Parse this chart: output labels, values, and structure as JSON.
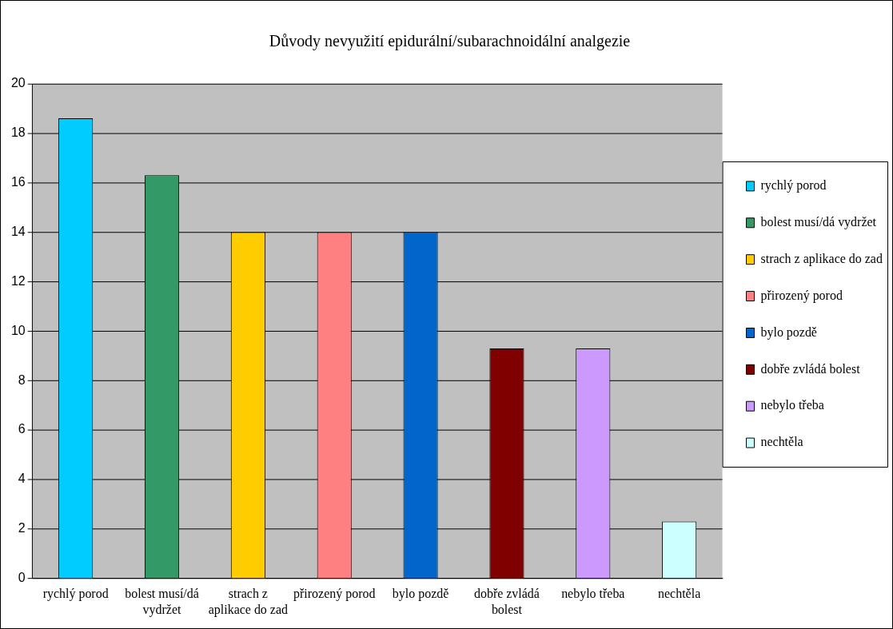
{
  "chart_data": {
    "type": "bar",
    "title": "Důvody nevyužití epidurální/subarachnoidální analgezie",
    "categories": [
      "rychlý porod",
      "bolest musí/dá vydržet",
      "strach z aplikace do zad",
      "přirozený porod",
      "bylo pozdě",
      "dobře zvládá bolest",
      "nebylo třeba",
      "nechtěla"
    ],
    "series": [
      {
        "name": "rychlý porod",
        "color": "#00ccff",
        "values": [
          18.6,
          null,
          null,
          null,
          null,
          null,
          null,
          null
        ]
      },
      {
        "name": "bolest musí/dá vydržet",
        "color": "#339966",
        "values": [
          null,
          16.3,
          null,
          null,
          null,
          null,
          null,
          null
        ]
      },
      {
        "name": "strach z aplikace do zad",
        "color": "#ffcc00",
        "values": [
          null,
          null,
          14,
          null,
          null,
          null,
          null,
          null
        ]
      },
      {
        "name": "přirozený porod",
        "color": "#ff8080",
        "values": [
          null,
          null,
          null,
          14,
          null,
          null,
          null,
          null
        ]
      },
      {
        "name": "bylo pozdě",
        "color": "#0066cc",
        "values": [
          null,
          null,
          null,
          null,
          14,
          null,
          null,
          null
        ]
      },
      {
        "name": "dobře zvládá bolest",
        "color": "#800000",
        "values": [
          null,
          null,
          null,
          null,
          null,
          9.3,
          null,
          null
        ]
      },
      {
        "name": "nebylo třeba",
        "color": "#cc99ff",
        "values": [
          null,
          null,
          null,
          null,
          null,
          null,
          9.3,
          null
        ]
      },
      {
        "name": "nechtěla",
        "color": "#ccffff",
        "values": [
          null,
          null,
          null,
          null,
          null,
          null,
          null,
          2.3
        ]
      }
    ],
    "ylim": [
      0,
      20
    ],
    "yticks": [
      0,
      2,
      4,
      6,
      8,
      10,
      12,
      14,
      16,
      18,
      20
    ],
    "grid": "y",
    "legend": "right"
  }
}
